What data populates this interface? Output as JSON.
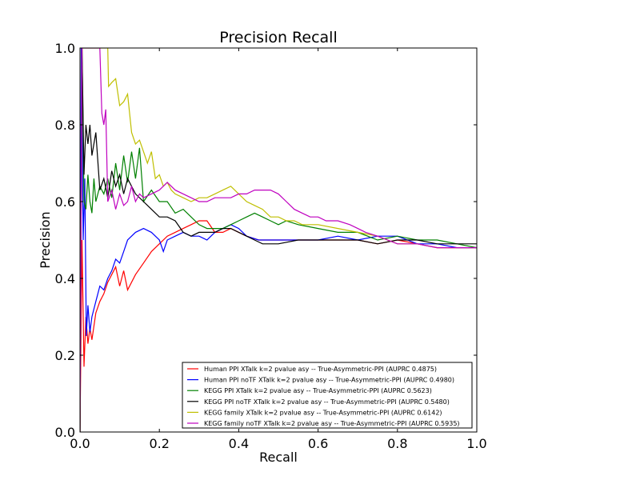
{
  "chart_data": {
    "type": "line",
    "title": "Precision Recall",
    "xlabel": "Recall",
    "ylabel": "Precision",
    "xlim": [
      0,
      1
    ],
    "ylim": [
      0,
      1
    ],
    "xticks": [
      "0.0",
      "0.2",
      "0.4",
      "0.6",
      "0.8",
      "1.0"
    ],
    "yticks": [
      "0.0",
      "0.2",
      "0.4",
      "0.6",
      "0.8",
      "1.0"
    ],
    "grid": false,
    "legend_position": "lower-right",
    "series": [
      {
        "name": "Human PPI XTalk k=2 pvalue asy -- True-Asymmetric-PPI (AUPRC 0.4875)",
        "color": "#ff0000",
        "points": [
          [
            0.0,
            0.0
          ],
          [
            0.005,
            0.5
          ],
          [
            0.01,
            0.17
          ],
          [
            0.015,
            0.3
          ],
          [
            0.02,
            0.23
          ],
          [
            0.025,
            0.27
          ],
          [
            0.03,
            0.24
          ],
          [
            0.04,
            0.31
          ],
          [
            0.05,
            0.34
          ],
          [
            0.06,
            0.36
          ],
          [
            0.07,
            0.39
          ],
          [
            0.08,
            0.41
          ],
          [
            0.09,
            0.43
          ],
          [
            0.1,
            0.38
          ],
          [
            0.11,
            0.42
          ],
          [
            0.12,
            0.37
          ],
          [
            0.14,
            0.41
          ],
          [
            0.16,
            0.44
          ],
          [
            0.18,
            0.47
          ],
          [
            0.2,
            0.49
          ],
          [
            0.22,
            0.51
          ],
          [
            0.24,
            0.52
          ],
          [
            0.26,
            0.53
          ],
          [
            0.28,
            0.54
          ],
          [
            0.3,
            0.55
          ],
          [
            0.32,
            0.55
          ],
          [
            0.34,
            0.52
          ],
          [
            0.36,
            0.52
          ],
          [
            0.38,
            0.53
          ],
          [
            0.4,
            0.52
          ],
          [
            0.42,
            0.51
          ],
          [
            0.45,
            0.5
          ],
          [
            0.5,
            0.5
          ],
          [
            0.55,
            0.5
          ],
          [
            0.6,
            0.5
          ],
          [
            0.65,
            0.5
          ],
          [
            0.7,
            0.5
          ],
          [
            0.75,
            0.49
          ],
          [
            0.8,
            0.5
          ],
          [
            0.85,
            0.49
          ],
          [
            0.9,
            0.48
          ],
          [
            0.95,
            0.48
          ],
          [
            1.0,
            0.48
          ]
        ]
      },
      {
        "name": "Human PPI noTF XTalk k=2 pvalue asy -- True-Asymmetric-PPI (AUPRC 0.4980)",
        "color": "#0000ff",
        "points": [
          [
            0.0,
            0.0
          ],
          [
            0.003,
            1.0
          ],
          [
            0.008,
            0.5
          ],
          [
            0.012,
            0.66
          ],
          [
            0.016,
            0.25
          ],
          [
            0.02,
            0.33
          ],
          [
            0.025,
            0.26
          ],
          [
            0.03,
            0.3
          ],
          [
            0.04,
            0.34
          ],
          [
            0.05,
            0.38
          ],
          [
            0.06,
            0.37
          ],
          [
            0.07,
            0.4
          ],
          [
            0.08,
            0.42
          ],
          [
            0.09,
            0.45
          ],
          [
            0.1,
            0.44
          ],
          [
            0.11,
            0.47
          ],
          [
            0.12,
            0.5
          ],
          [
            0.14,
            0.52
          ],
          [
            0.16,
            0.53
          ],
          [
            0.18,
            0.52
          ],
          [
            0.2,
            0.5
          ],
          [
            0.21,
            0.47
          ],
          [
            0.22,
            0.5
          ],
          [
            0.24,
            0.51
          ],
          [
            0.26,
            0.52
          ],
          [
            0.28,
            0.51
          ],
          [
            0.3,
            0.51
          ],
          [
            0.32,
            0.5
          ],
          [
            0.34,
            0.52
          ],
          [
            0.36,
            0.53
          ],
          [
            0.38,
            0.54
          ],
          [
            0.4,
            0.53
          ],
          [
            0.42,
            0.51
          ],
          [
            0.45,
            0.5
          ],
          [
            0.5,
            0.5
          ],
          [
            0.55,
            0.5
          ],
          [
            0.6,
            0.5
          ],
          [
            0.65,
            0.51
          ],
          [
            0.7,
            0.5
          ],
          [
            0.75,
            0.51
          ],
          [
            0.8,
            0.51
          ],
          [
            0.85,
            0.49
          ],
          [
            0.9,
            0.49
          ],
          [
            0.95,
            0.48
          ],
          [
            1.0,
            0.48
          ]
        ]
      },
      {
        "name": "KEGG PPI XTalk k=2 pvalue asy -- True-Asymmetric-PPI (AUPRC 0.5623)",
        "color": "#008000",
        "points": [
          [
            0.0,
            0.0
          ],
          [
            0.005,
            1.0
          ],
          [
            0.01,
            0.6
          ],
          [
            0.015,
            0.58
          ],
          [
            0.02,
            0.67
          ],
          [
            0.025,
            0.6
          ],
          [
            0.03,
            0.57
          ],
          [
            0.035,
            0.66
          ],
          [
            0.04,
            0.6
          ],
          [
            0.05,
            0.64
          ],
          [
            0.06,
            0.62
          ],
          [
            0.07,
            0.66
          ],
          [
            0.08,
            0.61
          ],
          [
            0.09,
            0.7
          ],
          [
            0.1,
            0.63
          ],
          [
            0.11,
            0.72
          ],
          [
            0.12,
            0.65
          ],
          [
            0.13,
            0.73
          ],
          [
            0.14,
            0.66
          ],
          [
            0.15,
            0.74
          ],
          [
            0.16,
            0.6
          ],
          [
            0.18,
            0.63
          ],
          [
            0.2,
            0.6
          ],
          [
            0.22,
            0.6
          ],
          [
            0.24,
            0.57
          ],
          [
            0.26,
            0.58
          ],
          [
            0.28,
            0.56
          ],
          [
            0.3,
            0.54
          ],
          [
            0.32,
            0.53
          ],
          [
            0.34,
            0.53
          ],
          [
            0.36,
            0.53
          ],
          [
            0.38,
            0.54
          ],
          [
            0.4,
            0.55
          ],
          [
            0.42,
            0.56
          ],
          [
            0.44,
            0.57
          ],
          [
            0.46,
            0.56
          ],
          [
            0.48,
            0.55
          ],
          [
            0.5,
            0.54
          ],
          [
            0.52,
            0.55
          ],
          [
            0.55,
            0.54
          ],
          [
            0.6,
            0.53
          ],
          [
            0.65,
            0.52
          ],
          [
            0.7,
            0.52
          ],
          [
            0.75,
            0.5
          ],
          [
            0.8,
            0.51
          ],
          [
            0.85,
            0.5
          ],
          [
            0.9,
            0.5
          ],
          [
            0.95,
            0.49
          ],
          [
            1.0,
            0.48
          ]
        ]
      },
      {
        "name": "KEGG PPI noTF XTalk k=2 pvalue asy -- True-Asymmetric-PPI (AUPRC 0.5480)",
        "color": "#000000",
        "points": [
          [
            0.0,
            0.0
          ],
          [
            0.005,
            1.0
          ],
          [
            0.01,
            0.67
          ],
          [
            0.015,
            0.8
          ],
          [
            0.02,
            0.75
          ],
          [
            0.025,
            0.8
          ],
          [
            0.03,
            0.72
          ],
          [
            0.04,
            0.78
          ],
          [
            0.05,
            0.63
          ],
          [
            0.06,
            0.66
          ],
          [
            0.07,
            0.61
          ],
          [
            0.08,
            0.68
          ],
          [
            0.09,
            0.64
          ],
          [
            0.1,
            0.67
          ],
          [
            0.11,
            0.62
          ],
          [
            0.12,
            0.66
          ],
          [
            0.14,
            0.62
          ],
          [
            0.16,
            0.6
          ],
          [
            0.18,
            0.58
          ],
          [
            0.2,
            0.56
          ],
          [
            0.22,
            0.56
          ],
          [
            0.24,
            0.55
          ],
          [
            0.26,
            0.52
          ],
          [
            0.28,
            0.51
          ],
          [
            0.3,
            0.52
          ],
          [
            0.32,
            0.52
          ],
          [
            0.34,
            0.52
          ],
          [
            0.36,
            0.53
          ],
          [
            0.38,
            0.53
          ],
          [
            0.4,
            0.52
          ],
          [
            0.42,
            0.51
          ],
          [
            0.44,
            0.5
          ],
          [
            0.46,
            0.49
          ],
          [
            0.5,
            0.49
          ],
          [
            0.55,
            0.5
          ],
          [
            0.6,
            0.5
          ],
          [
            0.65,
            0.5
          ],
          [
            0.7,
            0.5
          ],
          [
            0.75,
            0.49
          ],
          [
            0.8,
            0.5
          ],
          [
            0.85,
            0.5
          ],
          [
            0.9,
            0.49
          ],
          [
            0.95,
            0.49
          ],
          [
            1.0,
            0.49
          ]
        ]
      },
      {
        "name": "KEGG family XTalk k=2 pvalue asy -- True-Asymmetric-PPI (AUPRC 0.6142)",
        "color": "#bfbf00",
        "points": [
          [
            0.0,
            0.0
          ],
          [
            0.005,
            1.0
          ],
          [
            0.02,
            1.0
          ],
          [
            0.04,
            1.0
          ],
          [
            0.07,
            1.0
          ],
          [
            0.072,
            0.9
          ],
          [
            0.08,
            0.91
          ],
          [
            0.09,
            0.92
          ],
          [
            0.1,
            0.85
          ],
          [
            0.11,
            0.86
          ],
          [
            0.12,
            0.88
          ],
          [
            0.13,
            0.78
          ],
          [
            0.14,
            0.75
          ],
          [
            0.15,
            0.76
          ],
          [
            0.16,
            0.73
          ],
          [
            0.17,
            0.7
          ],
          [
            0.18,
            0.73
          ],
          [
            0.19,
            0.66
          ],
          [
            0.2,
            0.67
          ],
          [
            0.21,
            0.64
          ],
          [
            0.22,
            0.65
          ],
          [
            0.23,
            0.63
          ],
          [
            0.24,
            0.62
          ],
          [
            0.26,
            0.61
          ],
          [
            0.28,
            0.6
          ],
          [
            0.3,
            0.61
          ],
          [
            0.32,
            0.61
          ],
          [
            0.34,
            0.62
          ],
          [
            0.36,
            0.63
          ],
          [
            0.38,
            0.64
          ],
          [
            0.4,
            0.62
          ],
          [
            0.42,
            0.6
          ],
          [
            0.44,
            0.59
          ],
          [
            0.46,
            0.58
          ],
          [
            0.48,
            0.56
          ],
          [
            0.5,
            0.56
          ],
          [
            0.52,
            0.55
          ],
          [
            0.54,
            0.55
          ],
          [
            0.56,
            0.54
          ],
          [
            0.6,
            0.54
          ],
          [
            0.65,
            0.53
          ],
          [
            0.7,
            0.52
          ],
          [
            0.75,
            0.51
          ],
          [
            0.8,
            0.49
          ],
          [
            0.85,
            0.49
          ],
          [
            0.9,
            0.48
          ],
          [
            0.95,
            0.48
          ],
          [
            1.0,
            0.48
          ]
        ]
      },
      {
        "name": "KEGG family noTF XTalk k=2 pvalue asy -- True-Asymmetric-PPI (AUPRC 0.5935)",
        "color": "#bf00bf",
        "points": [
          [
            0.0,
            0.0
          ],
          [
            0.005,
            1.0
          ],
          [
            0.03,
            1.0
          ],
          [
            0.05,
            1.0
          ],
          [
            0.055,
            0.83
          ],
          [
            0.06,
            0.8
          ],
          [
            0.065,
            0.84
          ],
          [
            0.07,
            0.6
          ],
          [
            0.08,
            0.63
          ],
          [
            0.09,
            0.58
          ],
          [
            0.1,
            0.62
          ],
          [
            0.11,
            0.59
          ],
          [
            0.12,
            0.6
          ],
          [
            0.13,
            0.64
          ],
          [
            0.14,
            0.6
          ],
          [
            0.15,
            0.62
          ],
          [
            0.16,
            0.61
          ],
          [
            0.18,
            0.62
          ],
          [
            0.2,
            0.63
          ],
          [
            0.22,
            0.65
          ],
          [
            0.24,
            0.63
          ],
          [
            0.26,
            0.62
          ],
          [
            0.28,
            0.61
          ],
          [
            0.3,
            0.6
          ],
          [
            0.32,
            0.6
          ],
          [
            0.34,
            0.61
          ],
          [
            0.36,
            0.61
          ],
          [
            0.38,
            0.61
          ],
          [
            0.4,
            0.62
          ],
          [
            0.42,
            0.62
          ],
          [
            0.44,
            0.63
          ],
          [
            0.46,
            0.63
          ],
          [
            0.48,
            0.63
          ],
          [
            0.5,
            0.62
          ],
          [
            0.52,
            0.6
          ],
          [
            0.54,
            0.58
          ],
          [
            0.56,
            0.57
          ],
          [
            0.58,
            0.56
          ],
          [
            0.6,
            0.56
          ],
          [
            0.62,
            0.55
          ],
          [
            0.65,
            0.55
          ],
          [
            0.68,
            0.54
          ],
          [
            0.7,
            0.53
          ],
          [
            0.72,
            0.52
          ],
          [
            0.75,
            0.51
          ],
          [
            0.8,
            0.49
          ],
          [
            0.85,
            0.49
          ],
          [
            0.9,
            0.48
          ],
          [
            0.95,
            0.48
          ],
          [
            1.0,
            0.48
          ]
        ]
      }
    ]
  }
}
